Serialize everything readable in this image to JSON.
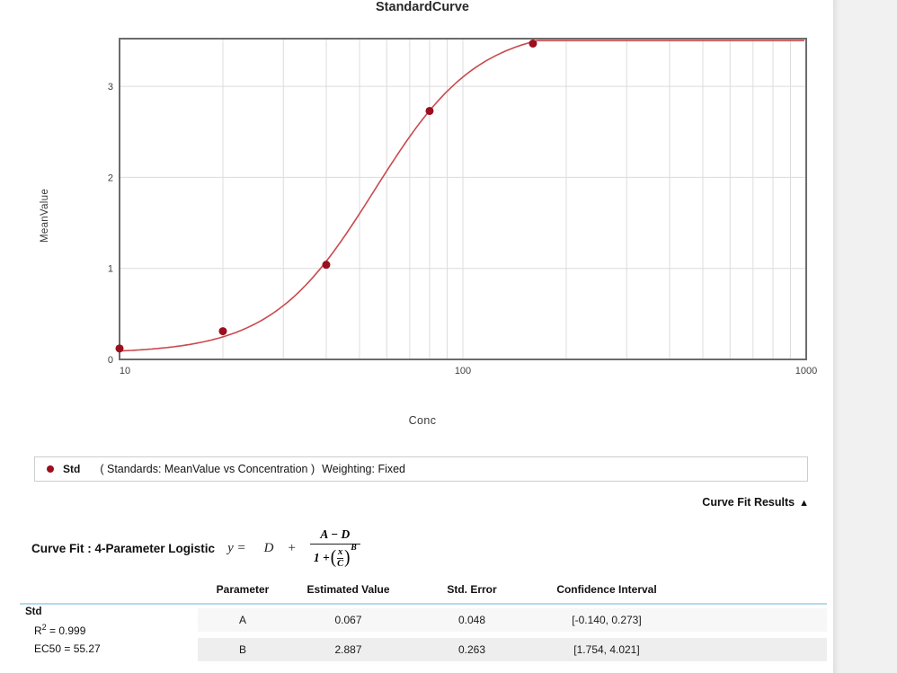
{
  "chart": {
    "title": "StandardCurve",
    "y_axis": {
      "label": "MeanValue",
      "ticks": [
        "0",
        "1",
        "2",
        "3"
      ],
      "range": [
        0,
        3.52
      ]
    },
    "x_axis": {
      "label": "Conc",
      "ticks": [
        "10",
        "100",
        "1000"
      ],
      "scale": "log",
      "range": [
        10,
        1000
      ]
    }
  },
  "chart_data": {
    "type": "scatter",
    "title": "StandardCurve",
    "xlabel": "Conc",
    "ylabel": "MeanValue",
    "x_scale": "log",
    "xlim": [
      10,
      1000
    ],
    "ylim": [
      0,
      3.52
    ],
    "grid": true,
    "series": [
      {
        "name": "Std",
        "points": [
          [
            10,
            0.12
          ],
          [
            20,
            0.31
          ],
          [
            40,
            1.04
          ],
          [
            80,
            2.73
          ],
          [
            160,
            3.47
          ]
        ]
      }
    ],
    "fit_curve": {
      "model": "4PL",
      "A": 0.067,
      "B": 2.887,
      "C": 55.27,
      "D": 3.65
    },
    "point_color": "#9b0f1e",
    "curve_color": "#c84a4e",
    "grid_color": "#dcdcdc",
    "axis_color": "#6b6b6b",
    "tick_color": "#3f3f3f"
  },
  "legend": {
    "series_label": "Std",
    "scope": "( Standards: MeanValue vs Concentration )",
    "weighting": "Weighting: Fixed"
  },
  "results": {
    "toggle_label": "Curve Fit Results",
    "toggle_arrow": "▲",
    "fit_label": "Curve Fit : 4-Parameter Logistic",
    "formula": {
      "lhs": "y =",
      "d": "D",
      "plus": "+",
      "numerator": "A − D",
      "den_prefix": "1 +",
      "paren_open": "(",
      "frac_x": "x",
      "frac_c": "C",
      "paren_close": ")",
      "exponent": "B"
    },
    "stats": {
      "group": "Std",
      "r2_base": "R",
      "r2_sup": "2",
      "r2_rest": " = 0.999",
      "ec50": "EC50 = 55.27"
    },
    "table": {
      "headers": [
        "Parameter",
        "Estimated Value",
        "Std. Error",
        "Confidence Interval"
      ],
      "rows": [
        {
          "parameter": "A",
          "estimated": "0.067",
          "std_error": "0.048",
          "ci": "[-0.140, 0.273]"
        },
        {
          "parameter": "B",
          "estimated": "2.887",
          "std_error": "0.263",
          "ci": "[1.754, 4.021]"
        }
      ]
    }
  }
}
